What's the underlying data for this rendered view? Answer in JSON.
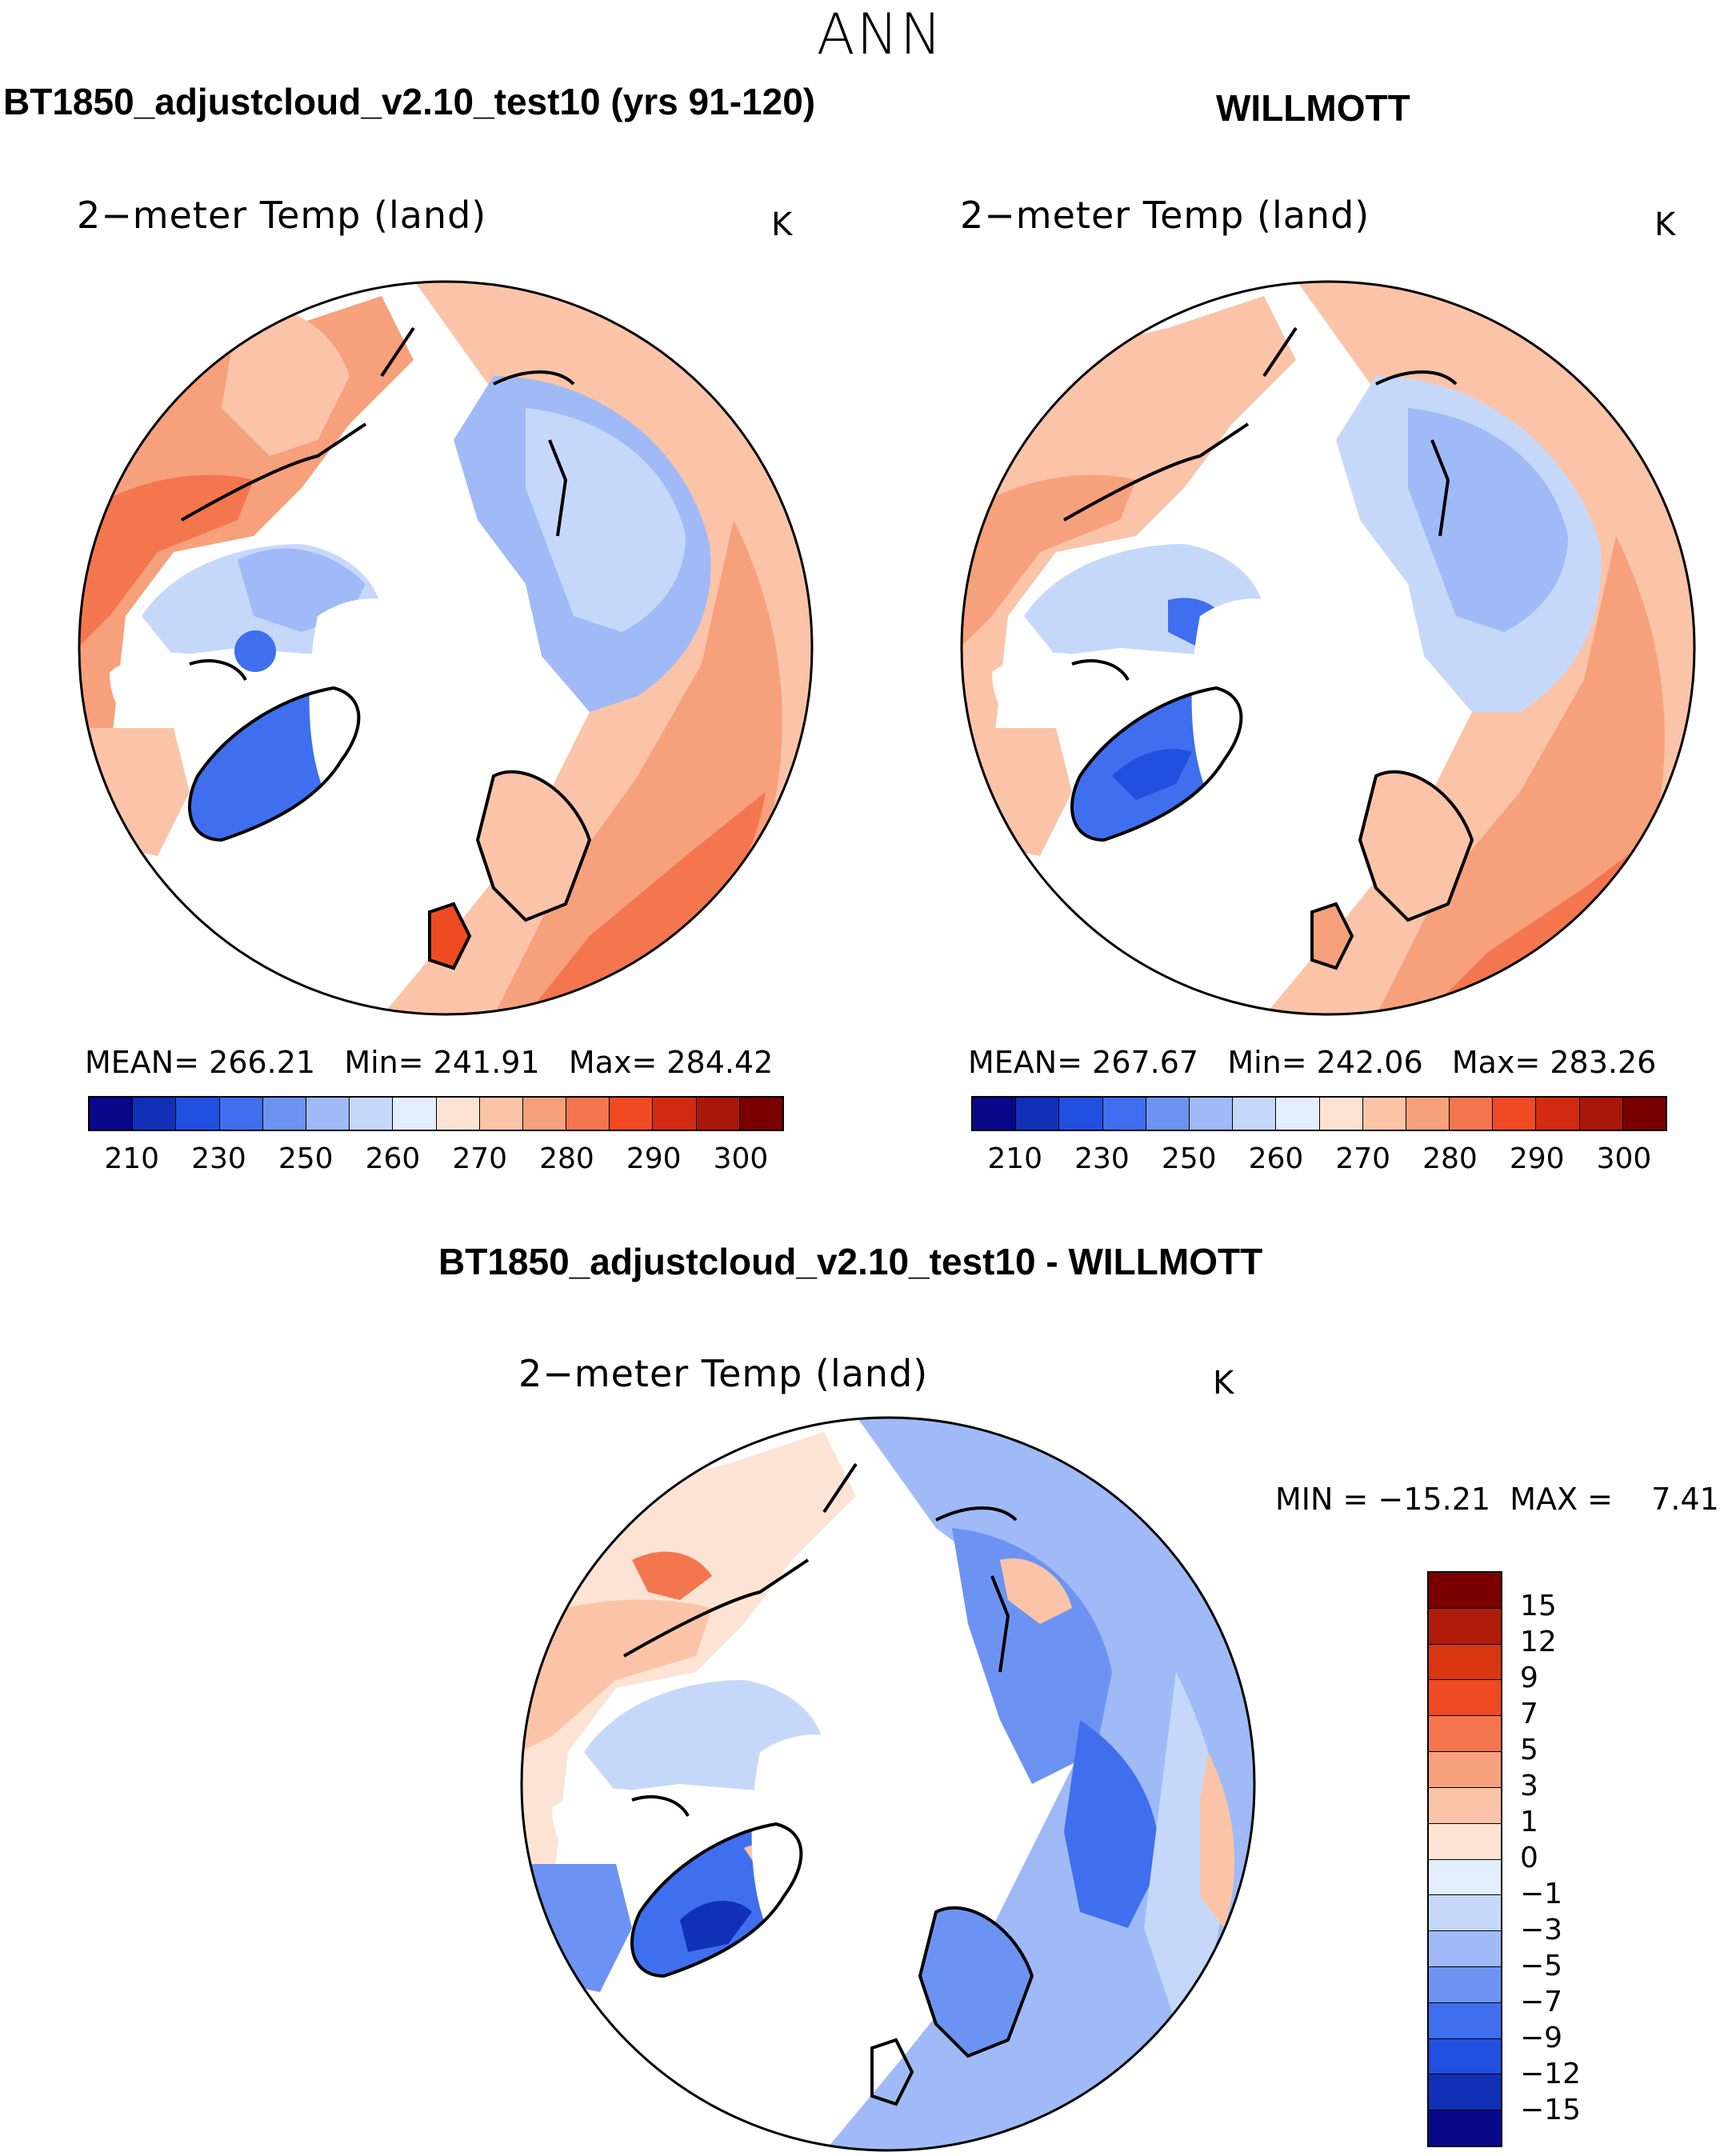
{
  "season": "ANN",
  "panels": {
    "model": {
      "title": "BT1850_adjustcloud_v2.10_test10 (yrs 91-120)",
      "variable": "2−meter Temp (land)",
      "unit": "K",
      "stats": "MEAN= 266.21   Min= 241.91   Max= 284.42"
    },
    "obs": {
      "title": "WILLMOTT",
      "variable": "2−meter Temp (land)",
      "unit": "K",
      "stats": "MEAN= 267.67   Min= 242.06   Max= 283.26"
    },
    "diff": {
      "title": "BT1850_adjustcloud_v2.10_test10 - WILLMOTT",
      "variable": "2−meter Temp (land)",
      "unit": "K",
      "stats": "MIN = −15.21  MAX =    7.41"
    }
  },
  "colorbar_abs": {
    "ticks": [
      "210",
      "230",
      "250",
      "260",
      "270",
      "280",
      "290",
      "300"
    ],
    "colors": [
      "#08088a",
      "#1030b8",
      "#2150e0",
      "#3f6fee",
      "#6d93f2",
      "#9fbaf6",
      "#c6d8fa",
      "#e3efff",
      "#fde3d4",
      "#fbc4a8",
      "#f7a07c",
      "#f4764f",
      "#ef4a22",
      "#d22a10",
      "#a8170a",
      "#7a0000"
    ]
  },
  "colorbar_diff": {
    "ticks": [
      "15",
      "12",
      "9",
      "7",
      "5",
      "3",
      "1",
      "0",
      "−1",
      "−3",
      "−5",
      "−7",
      "−9",
      "−12",
      "−15"
    ],
    "colors": [
      "#7a0000",
      "#b01c0a",
      "#d8360f",
      "#ef4a22",
      "#f4764f",
      "#f7a07c",
      "#fbc4a8",
      "#fde3d4",
      "#e3efff",
      "#c6d8fa",
      "#9fbaf6",
      "#6d93f2",
      "#3f6fee",
      "#2150e0",
      "#1030b8",
      "#08088a"
    ]
  },
  "legend": {
    "unit": "K"
  }
}
